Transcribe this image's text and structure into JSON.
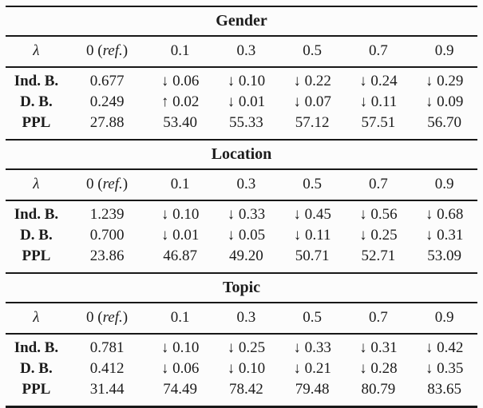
{
  "table": {
    "header": {
      "lambda": "λ",
      "ref_prefix": "0 (",
      "ref_italic": "ref.",
      "ref_suffix": ")",
      "lambdas": [
        "0.1",
        "0.3",
        "0.5",
        "0.7",
        "0.9"
      ]
    },
    "sections": [
      {
        "title": "Gender",
        "rows": [
          {
            "label": "Ind. B.",
            "values": [
              "0.677",
              "↓ 0.06",
              "↓ 0.10",
              "↓ 0.22",
              "↓ 0.24",
              "↓ 0.29"
            ]
          },
          {
            "label": "D. B.",
            "values": [
              "0.249",
              "↑ 0.02",
              "↓ 0.01",
              "↓ 0.07",
              "↓ 0.11",
              "↓ 0.09"
            ]
          },
          {
            "label": "PPL",
            "values": [
              "27.88",
              "53.40",
              "55.33",
              "57.12",
              "57.51",
              "56.70"
            ]
          }
        ]
      },
      {
        "title": "Location",
        "rows": [
          {
            "label": "Ind. B.",
            "values": [
              "1.239",
              "↓ 0.10",
              "↓ 0.33",
              "↓ 0.45",
              "↓ 0.56",
              "↓ 0.68"
            ]
          },
          {
            "label": "D. B.",
            "values": [
              "0.700",
              "↓ 0.01",
              "↓ 0.05",
              "↓ 0.11",
              "↓ 0.25",
              "↓ 0.31"
            ]
          },
          {
            "label": "PPL",
            "values": [
              "23.86",
              "46.87",
              "49.20",
              "50.71",
              "52.71",
              "53.09"
            ]
          }
        ]
      },
      {
        "title": "Topic",
        "rows": [
          {
            "label": "Ind. B.",
            "values": [
              "0.781",
              "↓ 0.10",
              "↓ 0.25",
              "↓ 0.33",
              "↓ 0.31",
              "↓ 0.42"
            ]
          },
          {
            "label": "D. B.",
            "values": [
              "0.412",
              "↓ 0.06",
              "↓ 0.10",
              "↓ 0.21",
              "↓ 0.28",
              "↓ 0.35"
            ]
          },
          {
            "label": "PPL",
            "values": [
              "31.44",
              "74.49",
              "78.42",
              "79.48",
              "80.79",
              "83.65"
            ]
          }
        ]
      }
    ]
  }
}
